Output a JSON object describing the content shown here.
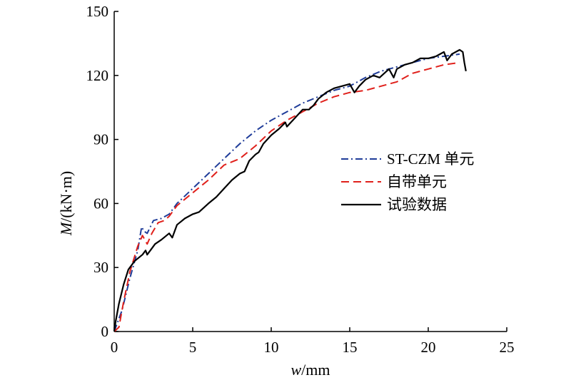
{
  "chart_data": {
    "type": "line",
    "xlabel_var": "w",
    "xlabel_unit": "/mm",
    "ylabel_var": "M",
    "ylabel_unit": "/(kN·m)",
    "xlim": [
      0,
      25
    ],
    "ylim": [
      0,
      150
    ],
    "xticks": [
      0,
      5,
      10,
      15,
      20,
      25
    ],
    "yticks": [
      0,
      30,
      60,
      90,
      120,
      150
    ],
    "grid": false,
    "legend_position": "right-center",
    "series": [
      {
        "name": "ST-CZM 单元",
        "color": "#1f3c99",
        "dash": "dash-dot",
        "points": [
          [
            0,
            0
          ],
          [
            0.5,
            10
          ],
          [
            1.0,
            25
          ],
          [
            1.5,
            38
          ],
          [
            1.7,
            47
          ],
          [
            1.75,
            49
          ],
          [
            1.9,
            47
          ],
          [
            2.1,
            46
          ],
          [
            2.5,
            52
          ],
          [
            3.0,
            53
          ],
          [
            3.5,
            55
          ],
          [
            4.0,
            60
          ],
          [
            5.0,
            67
          ],
          [
            6.0,
            74
          ],
          [
            7.0,
            81
          ],
          [
            8.0,
            88
          ],
          [
            9.0,
            94
          ],
          [
            10.0,
            99
          ],
          [
            11.0,
            103
          ],
          [
            12.0,
            107
          ],
          [
            13.0,
            110
          ],
          [
            14.0,
            113
          ],
          [
            15.0,
            115
          ],
          [
            16.0,
            119
          ],
          [
            17.0,
            122
          ],
          [
            18.0,
            124
          ],
          [
            19.0,
            126
          ],
          [
            20.0,
            128
          ],
          [
            21.0,
            129
          ],
          [
            22.0,
            130
          ]
        ]
      },
      {
        "name": "自带单元",
        "color": "#e0201b",
        "dash": "dashed",
        "points": [
          [
            0,
            0
          ],
          [
            0.3,
            2
          ],
          [
            0.6,
            14
          ],
          [
            1.0,
            28
          ],
          [
            1.5,
            40
          ],
          [
            1.8,
            45
          ],
          [
            2.1,
            41
          ],
          [
            2.4,
            46
          ],
          [
            2.8,
            51
          ],
          [
            3.2,
            52
          ],
          [
            3.5,
            54
          ],
          [
            4.0,
            59
          ],
          [
            5.0,
            65
          ],
          [
            6.0,
            71
          ],
          [
            7.0,
            78
          ],
          [
            8.0,
            81
          ],
          [
            9.0,
            87
          ],
          [
            10.0,
            94
          ],
          [
            11.0,
            99
          ],
          [
            12.0,
            103
          ],
          [
            13.0,
            107
          ],
          [
            14.0,
            110
          ],
          [
            15.0,
            112
          ],
          [
            16.0,
            113
          ],
          [
            17.0,
            115
          ],
          [
            18.0,
            117
          ],
          [
            19.0,
            121
          ],
          [
            20.0,
            123
          ],
          [
            21.0,
            125
          ],
          [
            22.0,
            126
          ]
        ]
      },
      {
        "name": "试验数据",
        "color": "#000000",
        "dash": "solid",
        "points": [
          [
            0,
            0
          ],
          [
            0.1,
            5
          ],
          [
            0.3,
            13
          ],
          [
            0.6,
            22
          ],
          [
            0.9,
            29
          ],
          [
            1.3,
            33
          ],
          [
            1.8,
            36
          ],
          [
            2.0,
            38
          ],
          [
            2.1,
            36
          ],
          [
            2.3,
            38
          ],
          [
            2.6,
            41
          ],
          [
            3.0,
            43
          ],
          [
            3.5,
            46
          ],
          [
            3.7,
            44
          ],
          [
            4.0,
            50
          ],
          [
            4.5,
            53
          ],
          [
            5.0,
            55
          ],
          [
            5.4,
            56
          ],
          [
            5.7,
            58
          ],
          [
            6.0,
            60
          ],
          [
            6.5,
            63
          ],
          [
            7.0,
            67
          ],
          [
            7.5,
            71
          ],
          [
            8.0,
            74
          ],
          [
            8.3,
            75
          ],
          [
            8.6,
            80
          ],
          [
            9.0,
            83
          ],
          [
            9.2,
            84
          ],
          [
            9.5,
            88
          ],
          [
            10.0,
            92
          ],
          [
            10.5,
            95
          ],
          [
            10.9,
            98
          ],
          [
            11.0,
            96
          ],
          [
            11.5,
            100
          ],
          [
            12.0,
            104
          ],
          [
            12.4,
            104
          ],
          [
            12.7,
            106
          ],
          [
            13.0,
            109
          ],
          [
            13.5,
            112
          ],
          [
            14.0,
            114
          ],
          [
            14.5,
            115
          ],
          [
            15.0,
            116
          ],
          [
            15.3,
            112
          ],
          [
            15.6,
            115
          ],
          [
            16.0,
            118
          ],
          [
            16.5,
            120
          ],
          [
            16.9,
            119
          ],
          [
            17.2,
            121
          ],
          [
            17.5,
            123
          ],
          [
            17.8,
            119
          ],
          [
            18.0,
            123
          ],
          [
            18.5,
            125
          ],
          [
            19.0,
            126
          ],
          [
            19.5,
            128
          ],
          [
            20.0,
            128
          ],
          [
            20.5,
            129
          ],
          [
            21.0,
            131
          ],
          [
            21.2,
            127
          ],
          [
            21.5,
            130
          ],
          [
            22.0,
            132
          ],
          [
            22.2,
            131
          ],
          [
            22.3,
            126
          ],
          [
            22.4,
            122
          ]
        ]
      }
    ]
  }
}
